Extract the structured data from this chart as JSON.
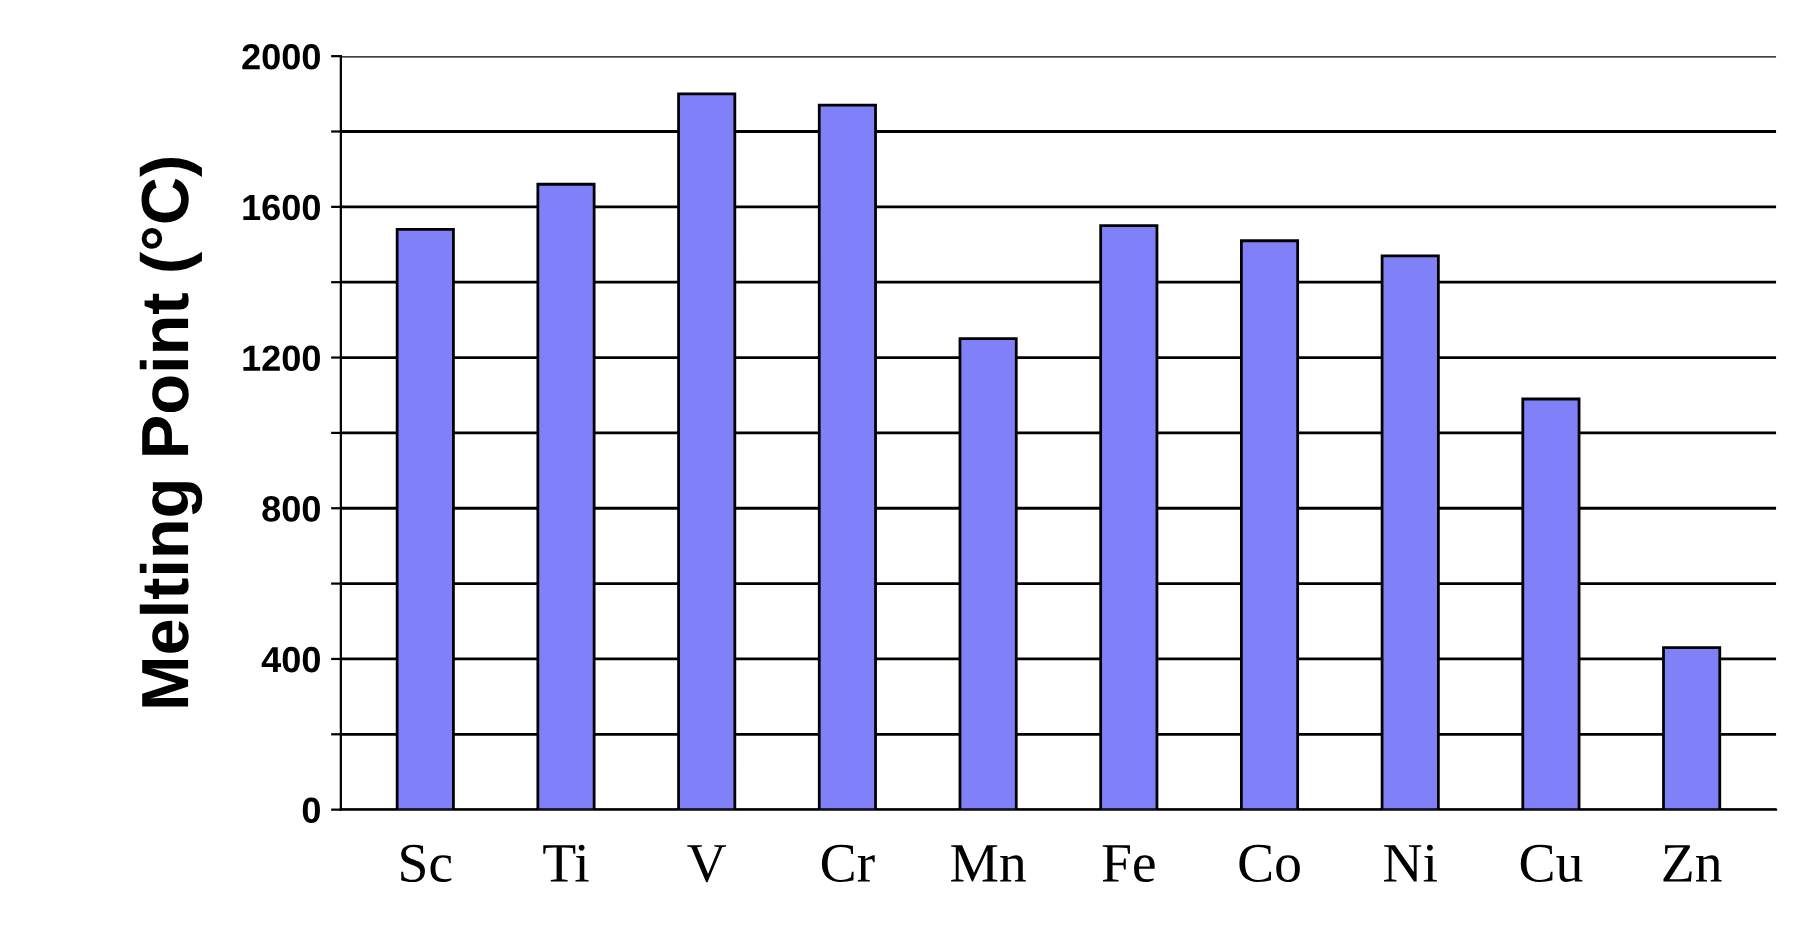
{
  "chart_data": {
    "type": "bar",
    "ylabel": "Melting Point (°C)",
    "categories": [
      "Sc",
      "Ti",
      "V",
      "Cr",
      "Mn",
      "Fe",
      "Co",
      "Ni",
      "Cu",
      "Zn"
    ],
    "values": [
      1540,
      1660,
      1900,
      1870,
      1250,
      1550,
      1510,
      1470,
      1090,
      430
    ],
    "color": "#8080f8",
    "ylim": [
      0,
      2000
    ],
    "yticks": [
      0,
      {
        "value": 200,
        "label": null
      },
      400,
      {
        "value": 600,
        "label": null
      },
      800,
      {
        "value": 1000,
        "label": null
      },
      1200,
      {
        "value": 1400,
        "label": null
      },
      1600,
      {
        "value": 1800,
        "label": null
      },
      2000
    ],
    "grid": "y"
  }
}
